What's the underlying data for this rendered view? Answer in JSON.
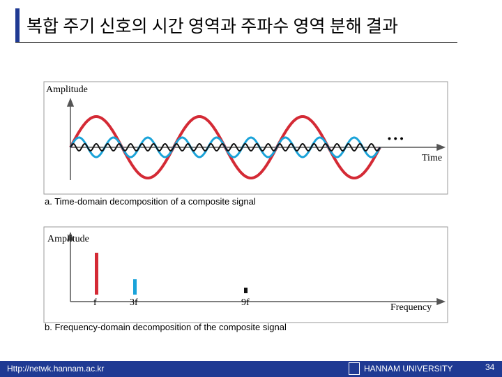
{
  "header": {
    "title": "복합 주기 신호의 시간 영역과 주파수 영역 분해 결과"
  },
  "figure_a": {
    "y_label": "Amplitude",
    "x_label": "Time",
    "ellipsis": "• • •",
    "caption": "a. Time-domain decomposition of a composite signal"
  },
  "figure_b": {
    "y_label": "Amplitude",
    "x_label": "Frequency",
    "bar_labels": [
      "f",
      "3f",
      "9f"
    ],
    "caption": "b. Frequency-domain decomposition of the composite signal"
  },
  "footer": {
    "url": "Http://netwk.hannam.ac.kr",
    "university": "HANNAM UNIVERSITY",
    "page": "34"
  }
}
